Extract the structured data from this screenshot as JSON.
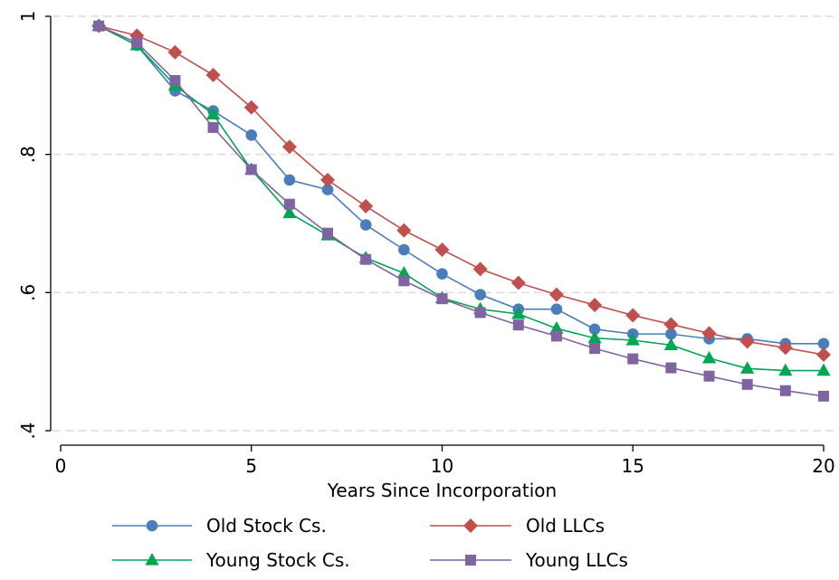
{
  "chart_data": {
    "type": "line",
    "title": "",
    "xlabel": "Years Since Incorporation",
    "ylabel": "",
    "xlim": [
      0,
      20
    ],
    "ylim": [
      0.4,
      1.0
    ],
    "xticks": [
      0,
      5,
      10,
      15,
      20
    ],
    "xtick_labels": [
      "0",
      "5",
      "10",
      "15",
      "20"
    ],
    "yticks": [
      0.4,
      0.6,
      0.8,
      1.0
    ],
    "ytick_labels": [
      ".4",
      ".6",
      ".8",
      "1"
    ],
    "grid": "horizontal-dashed",
    "legend_position": "bottom",
    "x": [
      1,
      2,
      3,
      4,
      5,
      6,
      7,
      8,
      9,
      10,
      11,
      12,
      13,
      14,
      15,
      16,
      17,
      18,
      19,
      20
    ],
    "series": [
      {
        "name": "Old Stock Cs.",
        "color": "#4a7ebb",
        "marker": "circle",
        "values": [
          0.986,
          0.958,
          0.892,
          0.863,
          0.828,
          0.763,
          0.749,
          0.698,
          0.662,
          0.627,
          0.597,
          0.576,
          0.576,
          0.547,
          0.54,
          0.54,
          0.533,
          0.533,
          0.526,
          0.526
        ]
      },
      {
        "name": "Old LLCs",
        "color": "#c0504d",
        "marker": "diamond",
        "values": [
          0.986,
          0.972,
          0.948,
          0.915,
          0.868,
          0.811,
          0.763,
          0.725,
          0.69,
          0.662,
          0.634,
          0.614,
          0.597,
          0.582,
          0.567,
          0.554,
          0.541,
          0.529,
          0.52,
          0.51
        ]
      },
      {
        "name": "Young Stock Cs.",
        "color": "#00a651",
        "marker": "triangle",
        "values": [
          0.986,
          0.958,
          0.9,
          0.858,
          0.778,
          0.715,
          0.683,
          0.65,
          0.628,
          0.592,
          0.576,
          0.569,
          0.548,
          0.534,
          0.531,
          0.524,
          0.505,
          0.49,
          0.487,
          0.487
        ]
      },
      {
        "name": "Young LLCs",
        "color": "#8064a2",
        "marker": "square",
        "values": [
          0.986,
          0.962,
          0.907,
          0.839,
          0.778,
          0.728,
          0.686,
          0.648,
          0.617,
          0.591,
          0.571,
          0.553,
          0.537,
          0.519,
          0.504,
          0.491,
          0.479,
          0.467,
          0.458,
          0.45
        ]
      }
    ]
  }
}
